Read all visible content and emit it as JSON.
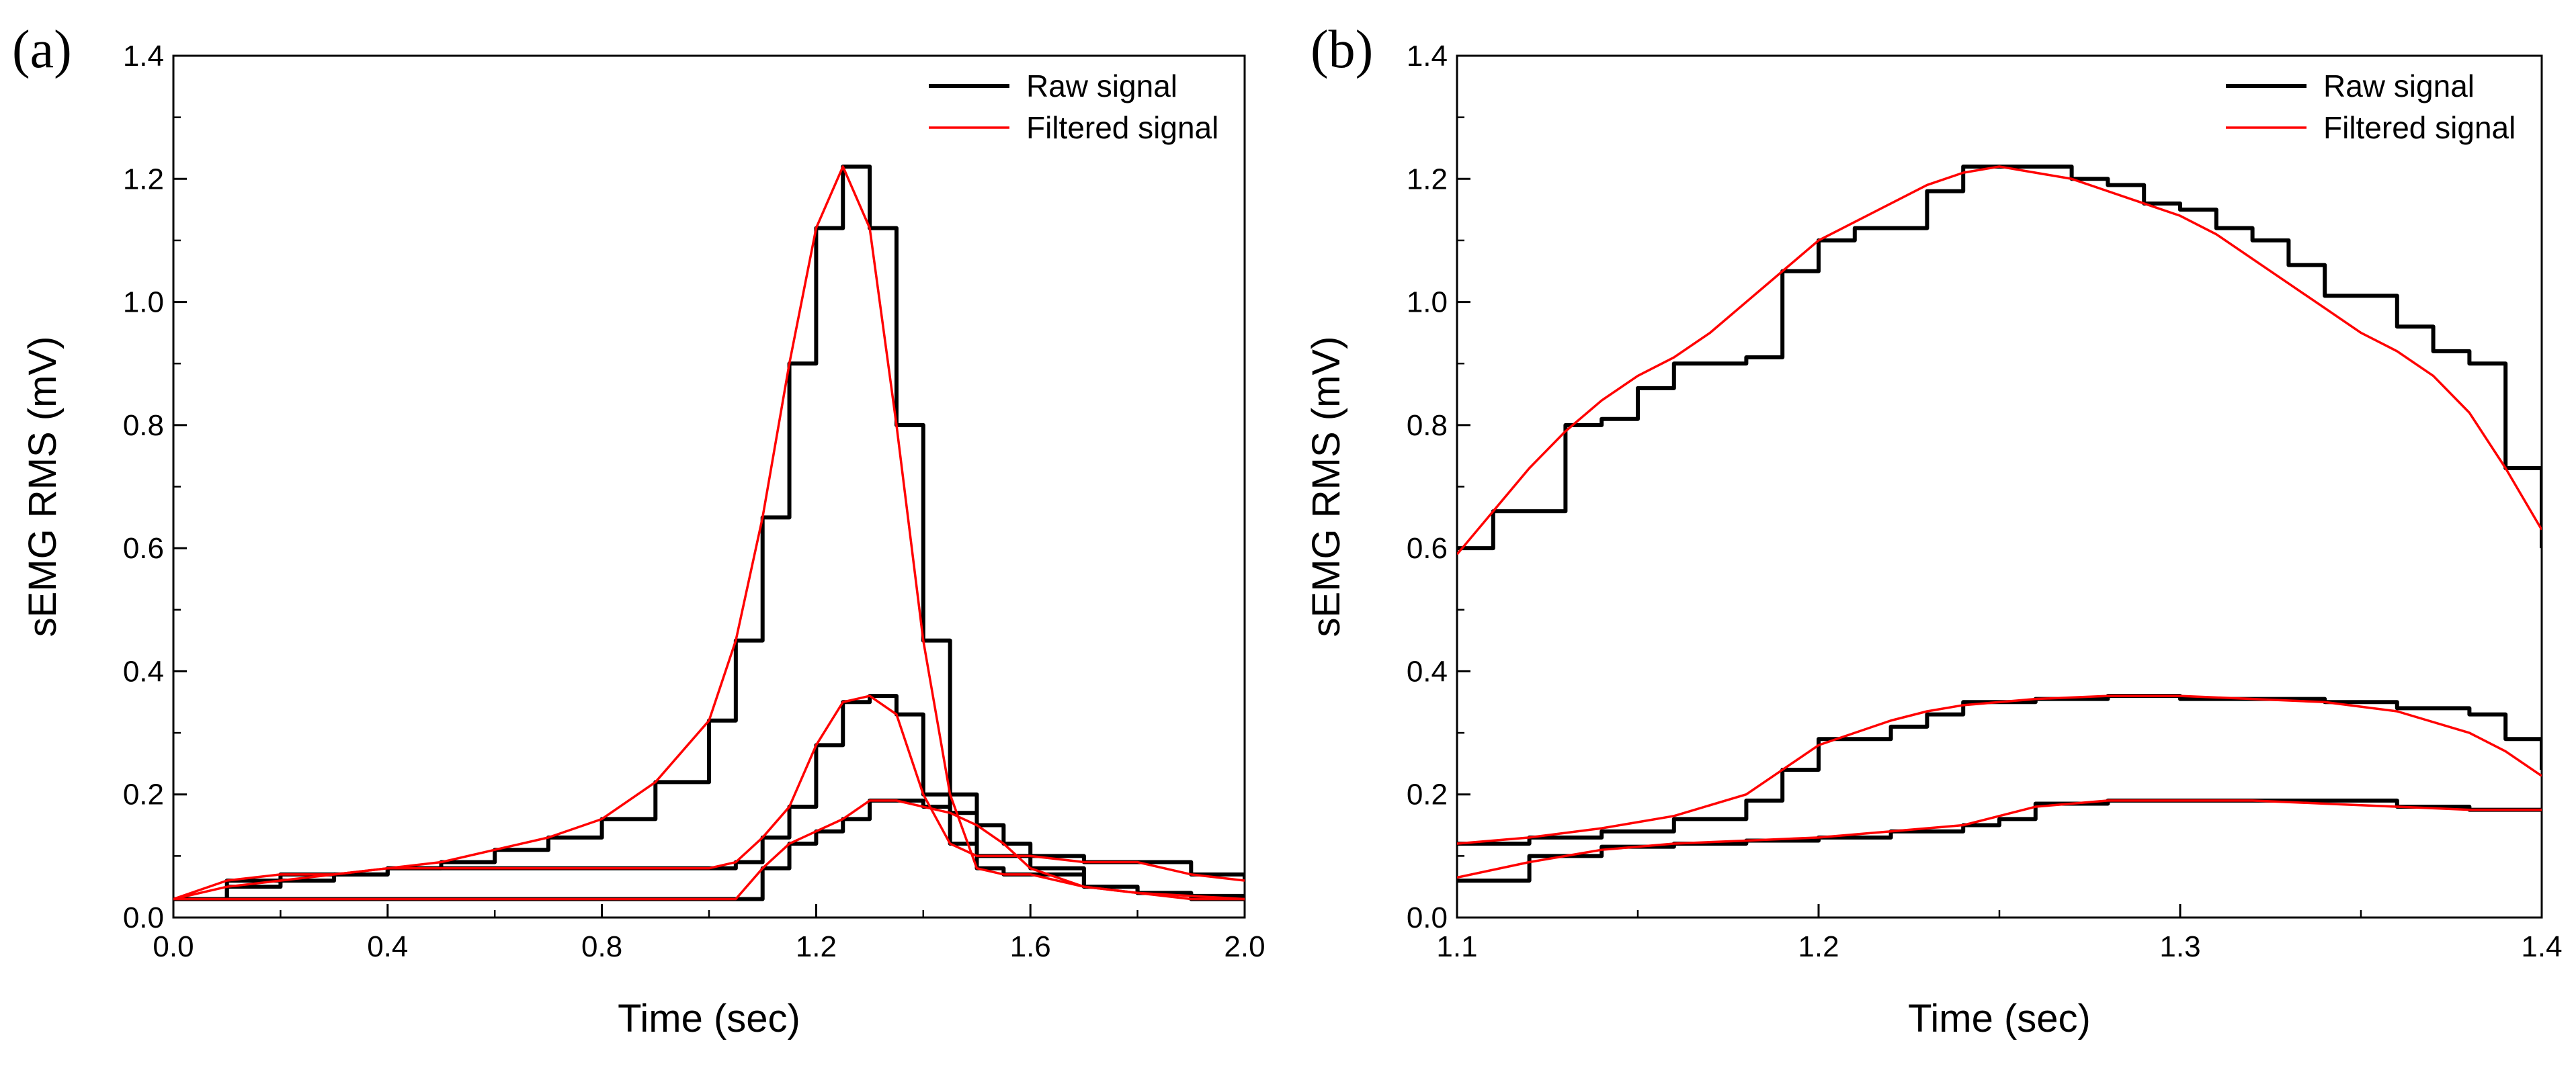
{
  "chart_data": [
    {
      "panel_label": "(a)",
      "type": "line",
      "xlabel": "Time (sec)",
      "ylabel": "sEMG RMS (mV)",
      "xlim": [
        0.0,
        2.0
      ],
      "ylim": [
        0.0,
        1.4
      ],
      "xticks": [
        "0.0",
        "0.4",
        "0.8",
        "1.2",
        "1.6",
        "2.0"
      ],
      "yticks": [
        "0.0",
        "0.2",
        "0.4",
        "0.6",
        "0.8",
        "1.0",
        "1.2",
        "1.4"
      ],
      "legend": {
        "position": "top-right",
        "entries": [
          "Raw signal",
          "Filtered signal"
        ]
      },
      "series": [
        {
          "name": "Raw signal",
          "color": "#000000",
          "traces": [
            {
              "x": [
                0,
                0.1,
                0.2,
                0.3,
                0.4,
                0.5,
                0.6,
                0.7,
                0.8,
                0.9,
                1.0,
                1.05,
                1.1,
                1.15,
                1.2,
                1.25,
                1.3,
                1.35,
                1.4,
                1.45,
                1.5,
                1.55,
                1.6,
                1.7,
                1.8,
                1.9,
                2.0
              ],
              "y": [
                0.03,
                0.05,
                0.06,
                0.07,
                0.08,
                0.09,
                0.11,
                0.13,
                0.16,
                0.22,
                0.32,
                0.45,
                0.65,
                0.9,
                1.12,
                1.22,
                1.12,
                0.8,
                0.45,
                0.2,
                0.08,
                0.07,
                0.07,
                0.05,
                0.04,
                0.03,
                0.03
              ]
            },
            {
              "x": [
                0,
                0.1,
                0.2,
                0.3,
                0.4,
                0.5,
                0.6,
                0.7,
                0.8,
                0.9,
                1.0,
                1.05,
                1.1,
                1.15,
                1.2,
                1.25,
                1.3,
                1.35,
                1.4,
                1.45,
                1.5,
                1.55,
                1.6,
                1.7,
                1.8,
                1.9,
                2.0
              ],
              "y": [
                0.03,
                0.06,
                0.07,
                0.07,
                0.08,
                0.08,
                0.08,
                0.08,
                0.08,
                0.08,
                0.08,
                0.09,
                0.13,
                0.18,
                0.28,
                0.35,
                0.36,
                0.33,
                0.2,
                0.12,
                0.1,
                0.1,
                0.1,
                0.09,
                0.09,
                0.07,
                0.06
              ]
            },
            {
              "x": [
                0,
                0.2,
                0.4,
                0.6,
                0.8,
                1.0,
                1.05,
                1.1,
                1.15,
                1.2,
                1.25,
                1.3,
                1.35,
                1.4,
                1.45,
                1.5,
                1.55,
                1.6,
                1.7,
                1.8,
                1.9,
                2.0
              ],
              "y": [
                0.03,
                0.03,
                0.03,
                0.03,
                0.03,
                0.03,
                0.03,
                0.08,
                0.12,
                0.14,
                0.16,
                0.19,
                0.19,
                0.18,
                0.17,
                0.15,
                0.12,
                0.08,
                0.05,
                0.04,
                0.035,
                0.03
              ]
            }
          ]
        },
        {
          "name": "Filtered signal",
          "color": "#ff0000",
          "traces": [
            {
              "x": [
                0,
                0.1,
                0.2,
                0.3,
                0.4,
                0.5,
                0.6,
                0.7,
                0.8,
                0.9,
                1.0,
                1.05,
                1.1,
                1.15,
                1.2,
                1.25,
                1.3,
                1.35,
                1.4,
                1.45,
                1.5,
                1.55,
                1.6,
                1.7,
                1.8,
                1.9,
                2.0
              ],
              "y": [
                0.03,
                0.05,
                0.06,
                0.07,
                0.08,
                0.09,
                0.11,
                0.13,
                0.16,
                0.22,
                0.32,
                0.45,
                0.65,
                0.9,
                1.12,
                1.22,
                1.12,
                0.8,
                0.45,
                0.2,
                0.08,
                0.07,
                0.07,
                0.05,
                0.04,
                0.03,
                0.03
              ]
            },
            {
              "x": [
                0,
                0.1,
                0.2,
                0.3,
                0.4,
                0.5,
                0.6,
                0.7,
                0.8,
                0.9,
                1.0,
                1.05,
                1.1,
                1.15,
                1.2,
                1.25,
                1.3,
                1.35,
                1.4,
                1.45,
                1.5,
                1.55,
                1.6,
                1.7,
                1.8,
                1.9,
                2.0
              ],
              "y": [
                0.03,
                0.06,
                0.07,
                0.07,
                0.08,
                0.08,
                0.08,
                0.08,
                0.08,
                0.08,
                0.08,
                0.09,
                0.13,
                0.18,
                0.28,
                0.35,
                0.36,
                0.33,
                0.2,
                0.12,
                0.1,
                0.1,
                0.1,
                0.09,
                0.09,
                0.07,
                0.06
              ]
            },
            {
              "x": [
                0,
                0.2,
                0.4,
                0.6,
                0.8,
                1.0,
                1.05,
                1.1,
                1.15,
                1.2,
                1.25,
                1.3,
                1.35,
                1.4,
                1.45,
                1.5,
                1.55,
                1.6,
                1.7,
                1.8,
                1.9,
                2.0
              ],
              "y": [
                0.03,
                0.03,
                0.03,
                0.03,
                0.03,
                0.03,
                0.03,
                0.08,
                0.12,
                0.14,
                0.16,
                0.19,
                0.19,
                0.18,
                0.17,
                0.15,
                0.12,
                0.08,
                0.05,
                0.04,
                0.035,
                0.03
              ]
            }
          ]
        }
      ]
    },
    {
      "panel_label": "(b)",
      "type": "line",
      "xlabel": "Time (sec)",
      "ylabel": "sEMG RMS (mV)",
      "xlim": [
        1.1,
        1.4
      ],
      "ylim": [
        0.0,
        1.4
      ],
      "xticks": [
        "1.1",
        "1.2",
        "1.3",
        "1.4"
      ],
      "yticks": [
        "0.0",
        "0.2",
        "0.4",
        "0.6",
        "0.8",
        "1.0",
        "1.2",
        "1.4"
      ],
      "legend": {
        "position": "top-right",
        "entries": [
          "Raw signal",
          "Filtered signal"
        ]
      },
      "series": [
        {
          "name": "Raw signal",
          "color": "#000000",
          "traces": [
            {
              "x": [
                1.1,
                1.11,
                1.12,
                1.13,
                1.14,
                1.15,
                1.16,
                1.17,
                1.18,
                1.19,
                1.2,
                1.21,
                1.22,
                1.23,
                1.24,
                1.25,
                1.26,
                1.27,
                1.28,
                1.29,
                1.3,
                1.31,
                1.32,
                1.33,
                1.34,
                1.35,
                1.36,
                1.37,
                1.38,
                1.39,
                1.4
              ],
              "y": [
                0.6,
                0.66,
                0.66,
                0.8,
                0.81,
                0.86,
                0.9,
                0.9,
                0.91,
                1.05,
                1.1,
                1.12,
                1.12,
                1.18,
                1.22,
                1.22,
                1.22,
                1.2,
                1.19,
                1.16,
                1.15,
                1.12,
                1.1,
                1.06,
                1.01,
                1.01,
                0.96,
                0.92,
                0.9,
                0.73,
                0.6
              ]
            },
            {
              "x": [
                1.1,
                1.12,
                1.14,
                1.16,
                1.18,
                1.19,
                1.2,
                1.22,
                1.23,
                1.24,
                1.26,
                1.28,
                1.3,
                1.32,
                1.34,
                1.36,
                1.38,
                1.39,
                1.4
              ],
              "y": [
                0.12,
                0.13,
                0.14,
                0.16,
                0.19,
                0.24,
                0.29,
                0.31,
                0.33,
                0.35,
                0.355,
                0.36,
                0.355,
                0.355,
                0.35,
                0.34,
                0.33,
                0.29,
                0.24
              ]
            },
            {
              "x": [
                1.1,
                1.12,
                1.14,
                1.16,
                1.18,
                1.2,
                1.22,
                1.24,
                1.25,
                1.26,
                1.28,
                1.3,
                1.32,
                1.34,
                1.36,
                1.38,
                1.4
              ],
              "y": [
                0.06,
                0.1,
                0.115,
                0.12,
                0.125,
                0.13,
                0.14,
                0.15,
                0.16,
                0.185,
                0.19,
                0.19,
                0.19,
                0.19,
                0.18,
                0.175,
                0.175
              ]
            }
          ]
        },
        {
          "name": "Filtered signal",
          "color": "#ff0000",
          "traces": [
            {
              "x": [
                1.1,
                1.11,
                1.12,
                1.13,
                1.14,
                1.15,
                1.16,
                1.17,
                1.18,
                1.19,
                1.2,
                1.21,
                1.22,
                1.23,
                1.24,
                1.25,
                1.26,
                1.27,
                1.28,
                1.29,
                1.3,
                1.31,
                1.32,
                1.33,
                1.34,
                1.35,
                1.36,
                1.37,
                1.38,
                1.39,
                1.4
              ],
              "y": [
                0.59,
                0.66,
                0.73,
                0.79,
                0.84,
                0.88,
                0.91,
                0.95,
                1.0,
                1.05,
                1.1,
                1.13,
                1.16,
                1.19,
                1.21,
                1.22,
                1.21,
                1.2,
                1.18,
                1.16,
                1.14,
                1.11,
                1.07,
                1.03,
                0.99,
                0.95,
                0.92,
                0.88,
                0.82,
                0.73,
                0.63
              ]
            },
            {
              "x": [
                1.1,
                1.12,
                1.14,
                1.16,
                1.18,
                1.19,
                1.2,
                1.22,
                1.23,
                1.24,
                1.26,
                1.28,
                1.3,
                1.32,
                1.34,
                1.36,
                1.38,
                1.39,
                1.4
              ],
              "y": [
                0.12,
                0.13,
                0.145,
                0.165,
                0.2,
                0.24,
                0.28,
                0.32,
                0.335,
                0.345,
                0.355,
                0.36,
                0.36,
                0.355,
                0.35,
                0.335,
                0.3,
                0.27,
                0.23
              ]
            },
            {
              "x": [
                1.1,
                1.12,
                1.14,
                1.16,
                1.18,
                1.2,
                1.22,
                1.24,
                1.25,
                1.26,
                1.28,
                1.3,
                1.32,
                1.34,
                1.36,
                1.38,
                1.4
              ],
              "y": [
                0.065,
                0.09,
                0.11,
                0.12,
                0.125,
                0.13,
                0.14,
                0.15,
                0.165,
                0.18,
                0.19,
                0.19,
                0.19,
                0.185,
                0.18,
                0.175,
                0.175
              ]
            }
          ]
        }
      ]
    }
  ]
}
